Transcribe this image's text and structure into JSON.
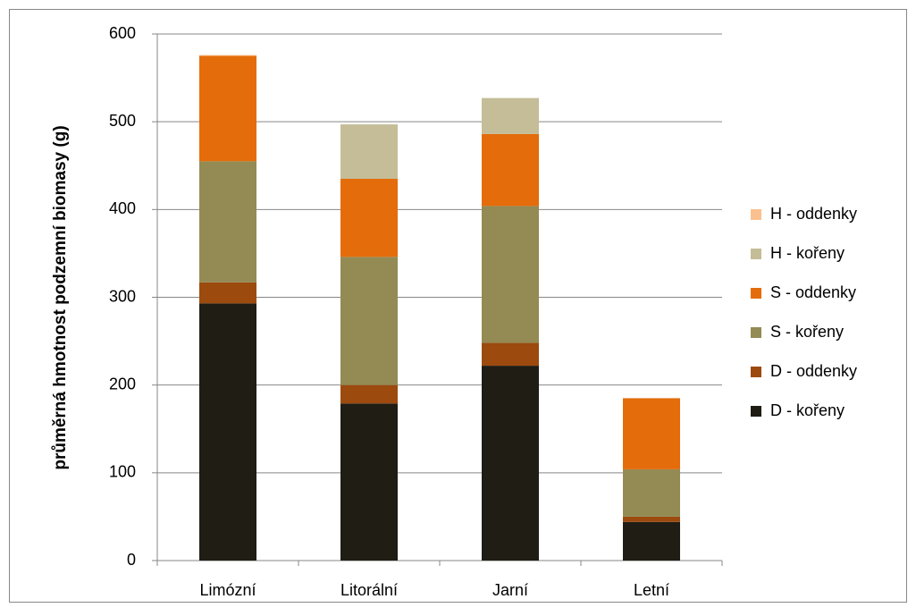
{
  "chart_data": {
    "type": "bar",
    "stacked": true,
    "y_label": "průměrná hmotnost podzemní biomasy (g)",
    "categories": [
      "Limózní",
      "Litorální",
      "Jarní",
      "Letní"
    ],
    "series": [
      {
        "name": "D - kořeny",
        "color": "#1f1d14",
        "values": [
          293,
          179,
          222,
          44
        ]
      },
      {
        "name": "D - oddenky",
        "color": "#9c4a0e",
        "values": [
          24,
          21,
          26,
          6
        ]
      },
      {
        "name": "S - kořeny",
        "color": "#948a54",
        "values": [
          138,
          146,
          156,
          54
        ]
      },
      {
        "name": "S - oddenky",
        "color": "#e46c0a",
        "values": [
          120,
          89,
          82,
          81
        ]
      },
      {
        "name": "H - kořeny",
        "color": "#c4bd97",
        "values": [
          0,
          62,
          41,
          0
        ]
      },
      {
        "name": "H - oddenky",
        "color": "#fac090",
        "values": [
          1,
          0,
          0,
          0
        ]
      }
    ],
    "ylim": [
      0,
      600
    ],
    "yticks": [
      0,
      100,
      200,
      300,
      400,
      500,
      600
    ],
    "grid": true,
    "legend": "right"
  }
}
